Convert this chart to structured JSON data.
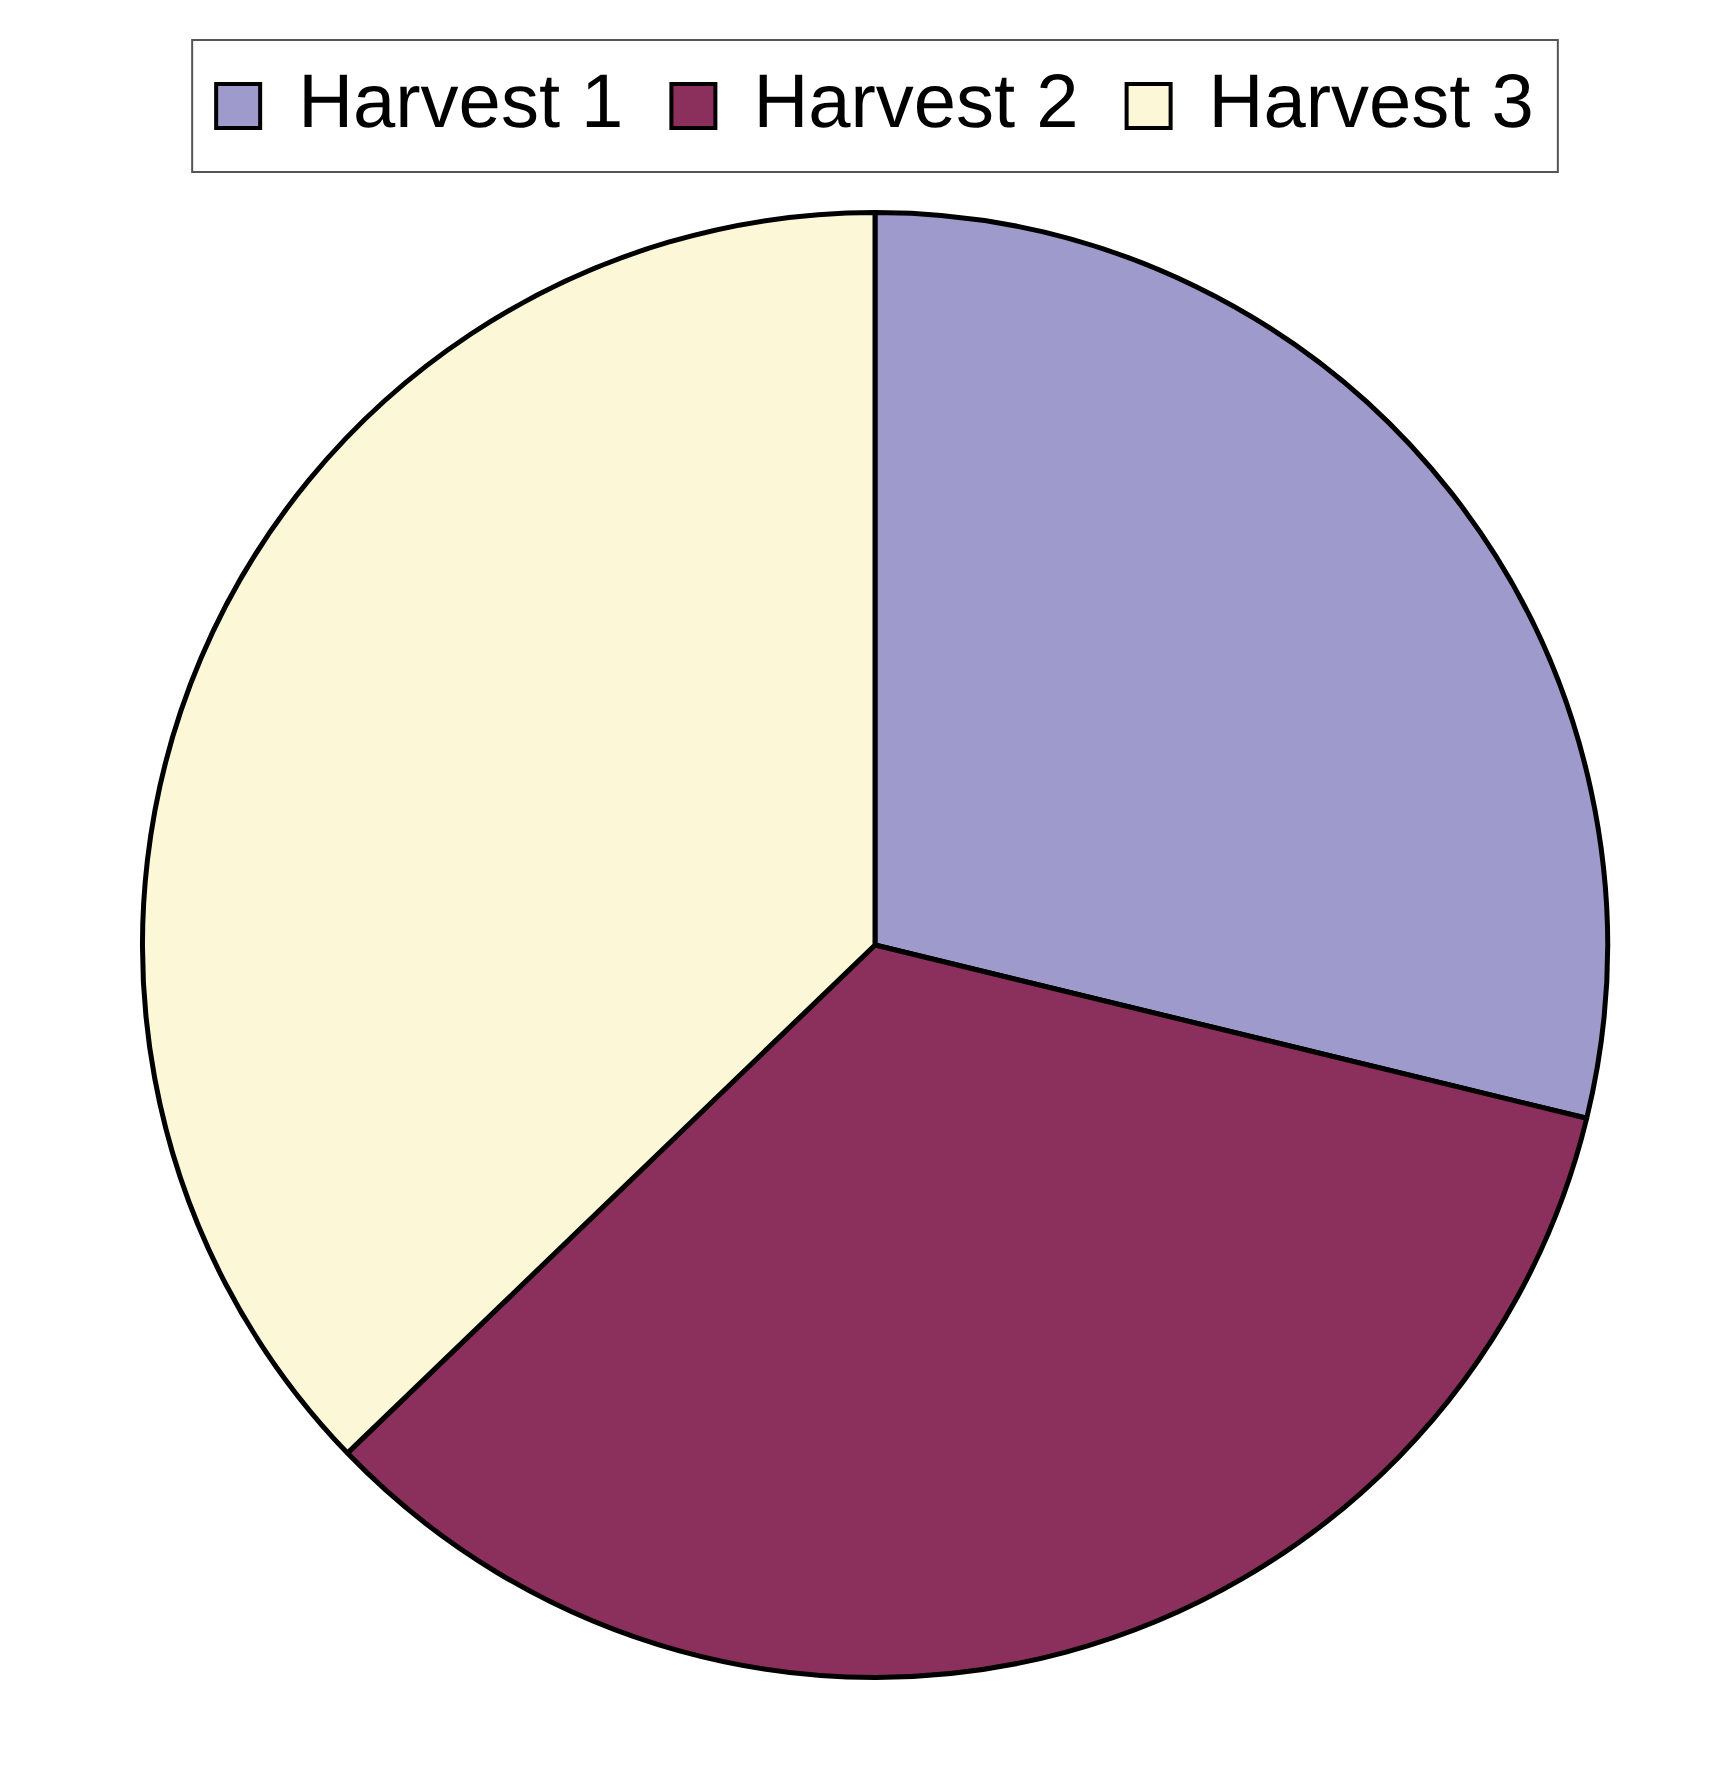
{
  "chart_data": {
    "type": "pie",
    "categories": [
      "Harvest 1",
      "Harvest 2",
      "Harvest 3"
    ],
    "values": [
      28.8,
      34.0,
      37.2
    ],
    "colors": [
      "#9e9acb",
      "#8b2f5c",
      "#fcf7d7"
    ],
    "legend": "top"
  }
}
